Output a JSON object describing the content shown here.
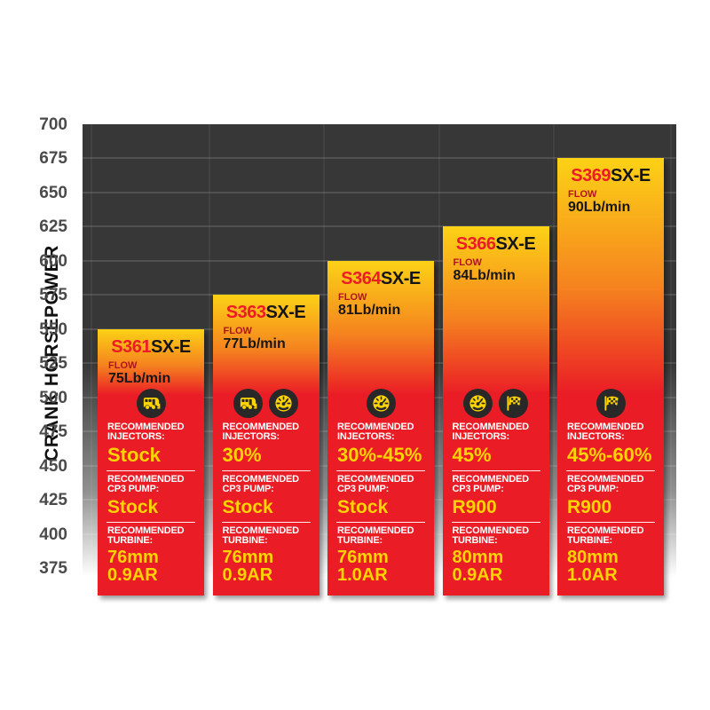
{
  "chart_data": {
    "type": "bar",
    "title": "",
    "xlabel": "",
    "ylabel": "CRANK HORSEPOWER",
    "ylim": [
      375,
      700
    ],
    "ytick_step": 25,
    "yticks": [
      700,
      675,
      650,
      625,
      600,
      575,
      550,
      525,
      500,
      475,
      450,
      425,
      400,
      375
    ],
    "grid": "horizontal",
    "legend": "none",
    "categories": [
      "S361SX-E",
      "S363SX-E",
      "S364SX-E",
      "S366SX-E",
      "S369SX-E"
    ],
    "values": [
      550,
      575,
      600,
      625,
      675
    ],
    "colors": {
      "bar_top_yellow": "#fcd216",
      "bar_mid_orange": "#f5821f",
      "bar_red": "#ea1c26",
      "model_number_red": "#ed1c24",
      "model_suffix_black": "#151515",
      "flow_label_red": "#b0151d",
      "value_yellow": "#ffd400",
      "header_white": "#ffffff",
      "plot_bg_dark": "#373737",
      "tick_gray": "#4a4a4a",
      "icon_circle": "#282828"
    },
    "bars": [
      {
        "model_prefix": "S361",
        "model_suffix": "SX-E",
        "flow_label": "FLOW",
        "flow_value": "75Lb/min",
        "value_hp": 550,
        "icons": [
          "camper"
        ],
        "injectors": {
          "label1": "RECOMMENDED",
          "label2": "INJECTORS:",
          "value": "Stock"
        },
        "pump": {
          "label1": "RECOMMENDED",
          "label2": "CP3 PUMP:",
          "value": "Stock"
        },
        "turbine": {
          "label1": "RECOMMENDED",
          "label2": "TURBINE:",
          "value1": "76mm",
          "value2": "0.9AR"
        }
      },
      {
        "model_prefix": "S363",
        "model_suffix": "SX-E",
        "flow_label": "FLOW",
        "flow_value": "77Lb/min",
        "value_hp": 575,
        "icons": [
          "camper",
          "gauge"
        ],
        "injectors": {
          "label1": "RECOMMENDED",
          "label2": "INJECTORS:",
          "value": "30%"
        },
        "pump": {
          "label1": "RECOMMENDED",
          "label2": "CP3 PUMP:",
          "value": "Stock"
        },
        "turbine": {
          "label1": "RECOMMENDED",
          "label2": "TURBINE:",
          "value1": "76mm",
          "value2": "0.9AR"
        }
      },
      {
        "model_prefix": "S364",
        "model_suffix": "SX-E",
        "flow_label": "FLOW",
        "flow_value": "81Lb/min",
        "value_hp": 600,
        "icons": [
          "gauge"
        ],
        "injectors": {
          "label1": "RECOMMENDED",
          "label2": "INJECTORS:",
          "value": "30%-45%"
        },
        "pump": {
          "label1": "RECOMMENDED",
          "label2": "CP3 PUMP:",
          "value": "Stock"
        },
        "turbine": {
          "label1": "RECOMMENDED",
          "label2": "TURBINE:",
          "value1": "76mm",
          "value2": "1.0AR"
        }
      },
      {
        "model_prefix": "S366",
        "model_suffix": "SX-E",
        "flow_label": "FLOW",
        "flow_value": "84Lb/min",
        "value_hp": 625,
        "icons": [
          "gauge",
          "flag"
        ],
        "injectors": {
          "label1": "RECOMMENDED",
          "label2": "INJECTORS:",
          "value": "45%"
        },
        "pump": {
          "label1": "RECOMMENDED",
          "label2": "CP3 PUMP:",
          "value": "R900"
        },
        "turbine": {
          "label1": "RECOMMENDED",
          "label2": "TURBINE:",
          "value1": "80mm",
          "value2": "0.9AR"
        }
      },
      {
        "model_prefix": "S369",
        "model_suffix": "SX-E",
        "flow_label": "FLOW",
        "flow_value": "90Lb/min",
        "value_hp": 675,
        "icons": [
          "flag"
        ],
        "injectors": {
          "label1": "RECOMMENDED",
          "label2": "INJECTORS:",
          "value": "45%-60%"
        },
        "pump": {
          "label1": "RECOMMENDED",
          "label2": "CP3 PUMP:",
          "value": "R900"
        },
        "turbine": {
          "label1": "RECOMMENDED",
          "label2": "TURBINE:",
          "value1": "80mm",
          "value2": "1.0AR"
        }
      }
    ]
  }
}
